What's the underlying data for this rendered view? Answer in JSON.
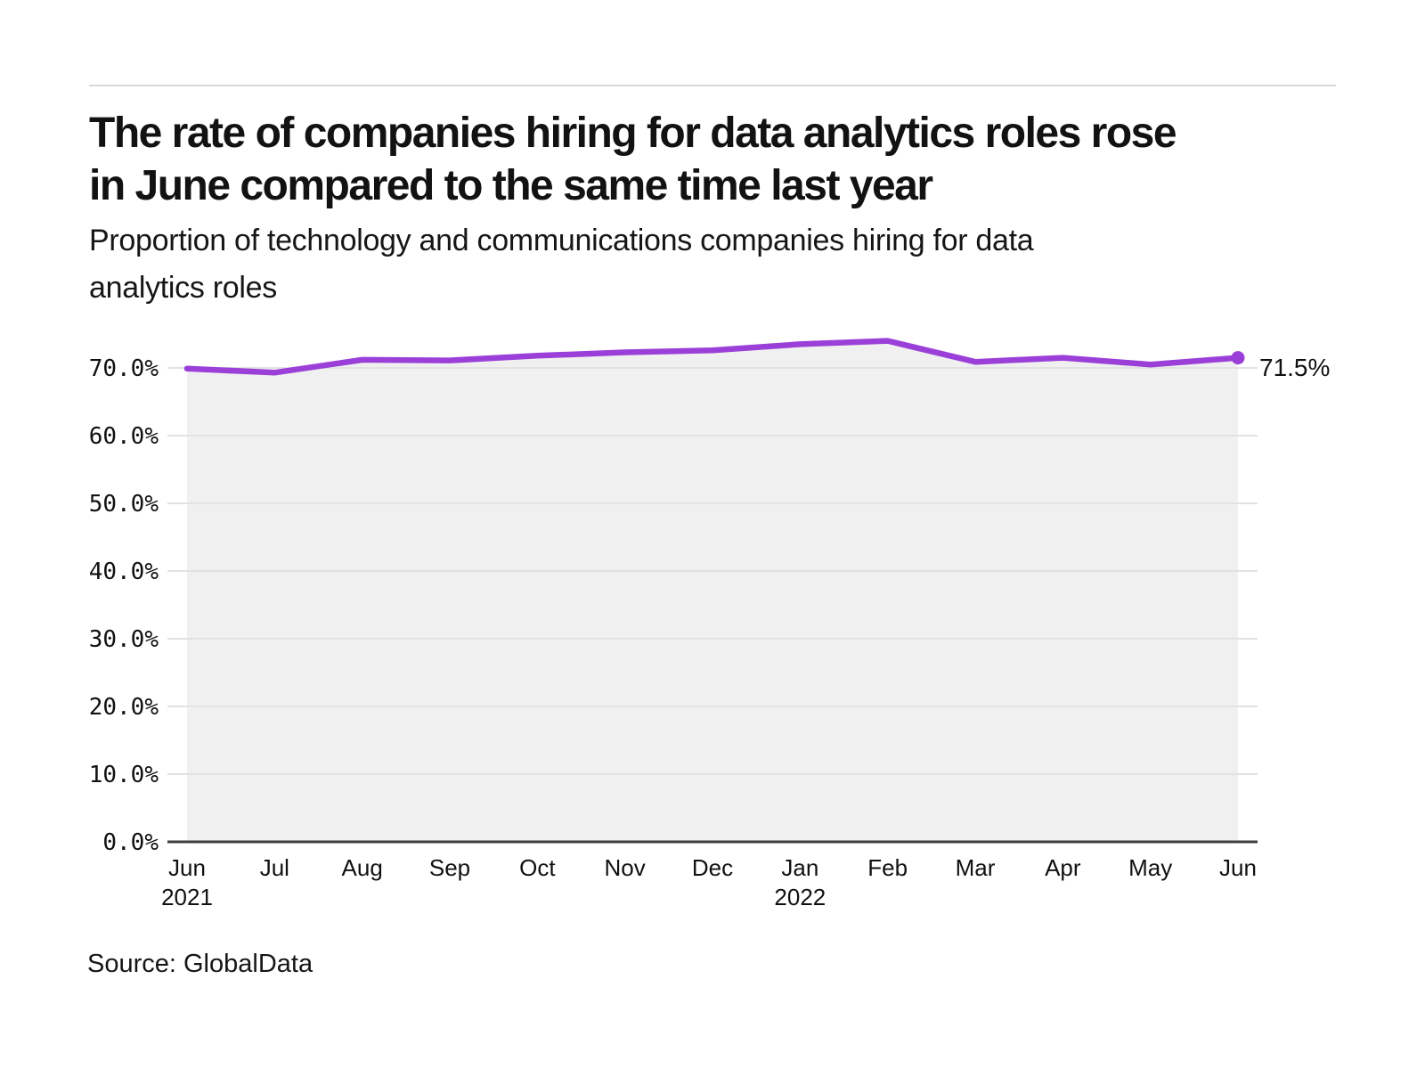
{
  "header": {
    "title_lines": [
      "The rate of companies hiring for data analytics roles rose",
      "in June compared to the same time last year"
    ],
    "subtitle_lines": [
      "Proportion of technology and communications companies hiring for data",
      "analytics roles"
    ]
  },
  "chart_data": {
    "type": "area",
    "title": "The rate of companies hiring for data analytics roles rose in June compared to the same time last year",
    "subtitle": "Proportion of technology and communications companies hiring for data analytics roles",
    "categories": [
      "Jun",
      "Jul",
      "Aug",
      "Sep",
      "Oct",
      "Nov",
      "Dec",
      "Jan",
      "Feb",
      "Mar",
      "Apr",
      "May",
      "Jun"
    ],
    "year_labels": [
      {
        "index": 0,
        "text": "2021"
      },
      {
        "index": 7,
        "text": "2022"
      }
    ],
    "values": [
      69.9,
      69.3,
      71.2,
      71.1,
      71.8,
      72.3,
      72.6,
      73.5,
      74.0,
      70.9,
      71.5,
      70.5,
      71.5
    ],
    "end_label": "71.5%",
    "y_ticks": [
      {
        "value": 0,
        "label": "0.0%"
      },
      {
        "value": 10,
        "label": "10.0%"
      },
      {
        "value": 20,
        "label": "20.0%"
      },
      {
        "value": 30,
        "label": "30.0%"
      },
      {
        "value": 40,
        "label": "40.0%"
      },
      {
        "value": 50,
        "label": "50.0%"
      },
      {
        "value": 60,
        "label": "60.0%"
      },
      {
        "value": 70,
        "label": "70.0%"
      }
    ],
    "ylim": [
      0,
      75
    ],
    "grid": "horizontal",
    "legend": "none",
    "colors": {
      "line": "#9B3FD9",
      "area_fill": "#F0F0F0",
      "gridline": "#E2E2E2",
      "axis": "#3D3D3D",
      "text": "#111111"
    }
  },
  "footer": {
    "source": "Source: GlobalData"
  }
}
